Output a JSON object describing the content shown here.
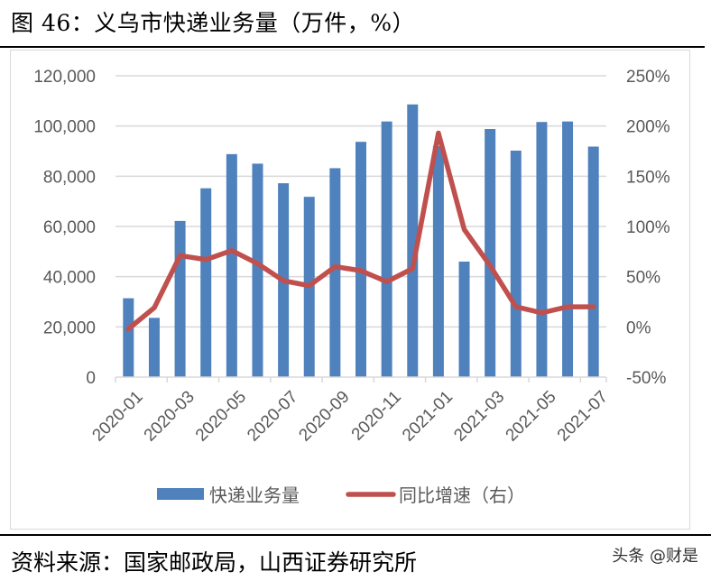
{
  "figure": {
    "title": "图 46：义乌市快递业务量（万件，%）",
    "source": "资料来源：国家邮政局，山西证券研究所",
    "watermark": "头条 @财是"
  },
  "colors": {
    "bar": "#4F81BD",
    "line": "#C0504D",
    "grid": "#D9D9D9",
    "axis_text": "#595959"
  },
  "chart_data": {
    "type": "bar+line",
    "title": "义乌市快递业务量（万件，%）",
    "xlabel": "",
    "ylabel": "",
    "categories": [
      "2020-01",
      "2020-02",
      "2020-03",
      "2020-04",
      "2020-05",
      "2020-06",
      "2020-07",
      "2020-08",
      "2020-09",
      "2020-10",
      "2020-11",
      "2020-12",
      "2021-01",
      "2021-02",
      "2021-03",
      "2021-04",
      "2021-05",
      "2021-06",
      "2021-07"
    ],
    "x_tick_labels": [
      "2020-01",
      "2020-03",
      "2020-05",
      "2020-07",
      "2020-09",
      "2020-11",
      "2021-01",
      "2021-03",
      "2021-05",
      "2021-07"
    ],
    "series": [
      {
        "name": "快递业务量",
        "type": "bar",
        "axis": "left",
        "values": [
          31400,
          23600,
          62200,
          75200,
          88800,
          85000,
          77200,
          71800,
          83200,
          93700,
          101800,
          108600,
          92000,
          46000,
          98800,
          90200,
          101600,
          101800,
          91800
        ]
      },
      {
        "name": "同比增速（右）",
        "type": "line",
        "axis": "right",
        "values": [
          -2,
          19,
          71,
          67,
          76,
          63,
          46,
          41,
          60,
          56,
          45,
          58,
          193,
          97,
          61,
          20,
          14,
          20,
          20
        ]
      }
    ],
    "y_left": {
      "min": 0,
      "max": 120000,
      "step": 20000,
      "tick_labels": [
        "0",
        "20,000",
        "40,000",
        "60,000",
        "80,000",
        "100,000",
        "120,000"
      ]
    },
    "y_right": {
      "min": -50,
      "max": 250,
      "step": 50,
      "tick_labels": [
        "-50%",
        "0%",
        "50%",
        "100%",
        "150%",
        "200%",
        "250%"
      ]
    },
    "grid": true,
    "legend": {
      "position": "bottom",
      "entries": [
        "快递业务量",
        "同比增速（右）"
      ]
    }
  }
}
